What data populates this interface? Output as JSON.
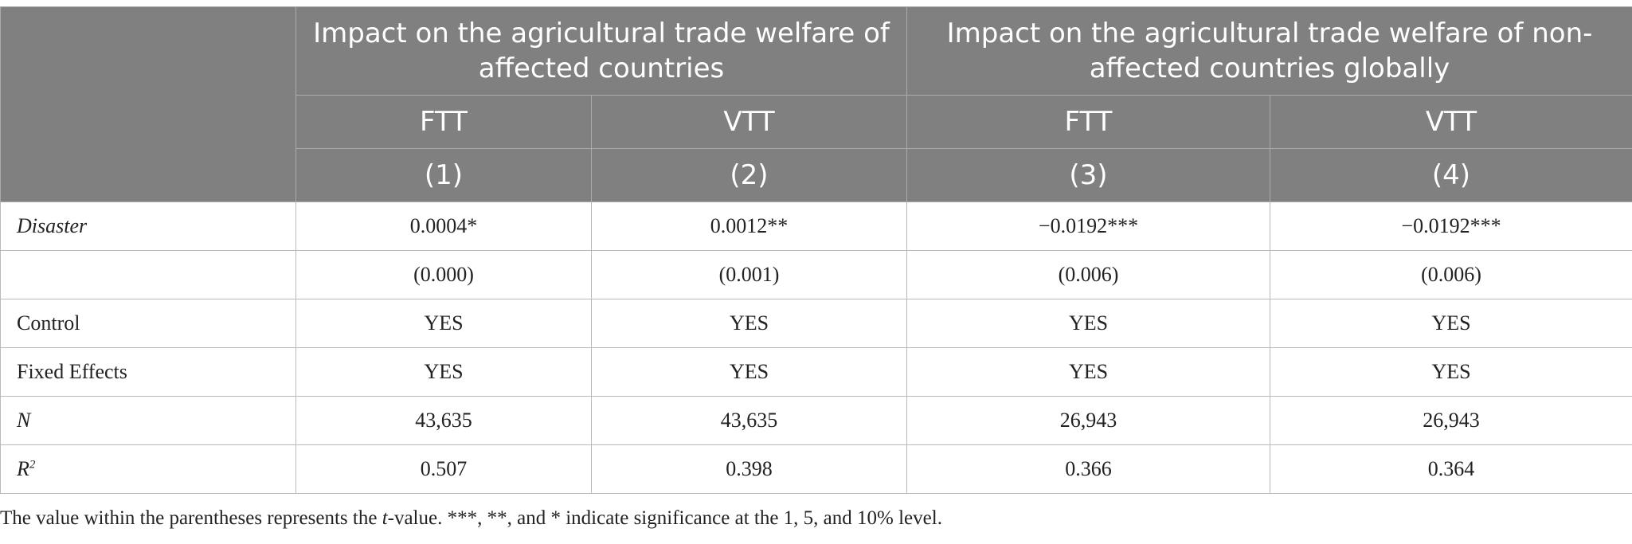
{
  "header": {
    "group1": "Impact on the agricultural trade welfare of affected countries",
    "group2": "Impact on the agricultural trade welfare of non-affected countries globally",
    "columns": [
      {
        "name": "FTT",
        "num": "(1)"
      },
      {
        "name": "VTT",
        "num": "(2)"
      },
      {
        "name": "FTT",
        "num": "(3)"
      },
      {
        "name": "VTT",
        "num": "(4)"
      }
    ]
  },
  "rows": {
    "disaster": {
      "label": "Disaster",
      "values": [
        "0.0004*",
        "0.0012**",
        "−0.0192***",
        "−0.0192***"
      ]
    },
    "tvalues": {
      "label": "",
      "values": [
        "(0.000)",
        "(0.001)",
        "(0.006)",
        "(0.006)"
      ]
    },
    "control": {
      "label": "Control",
      "values": [
        "YES",
        "YES",
        "YES",
        "YES"
      ]
    },
    "fixed": {
      "label": "Fixed Effects",
      "values": [
        "YES",
        "YES",
        "YES",
        "YES"
      ]
    },
    "n": {
      "label": "N",
      "values": [
        "43,635",
        "43,635",
        "26,943",
        "26,943"
      ]
    },
    "r2": {
      "label": "R",
      "sup": "2",
      "values": [
        "0.507",
        "0.398",
        "0.366",
        "0.364"
      ]
    }
  },
  "note": {
    "before": "The value within the parentheses represents the ",
    "italic": "t",
    "after": "-value. ***, **, and * indicate significance at the 1, 5, and 10% level."
  },
  "colors": {
    "header_bg": "#7f807f",
    "header_text": "#ffffff",
    "grid": "#b9b9b9"
  }
}
